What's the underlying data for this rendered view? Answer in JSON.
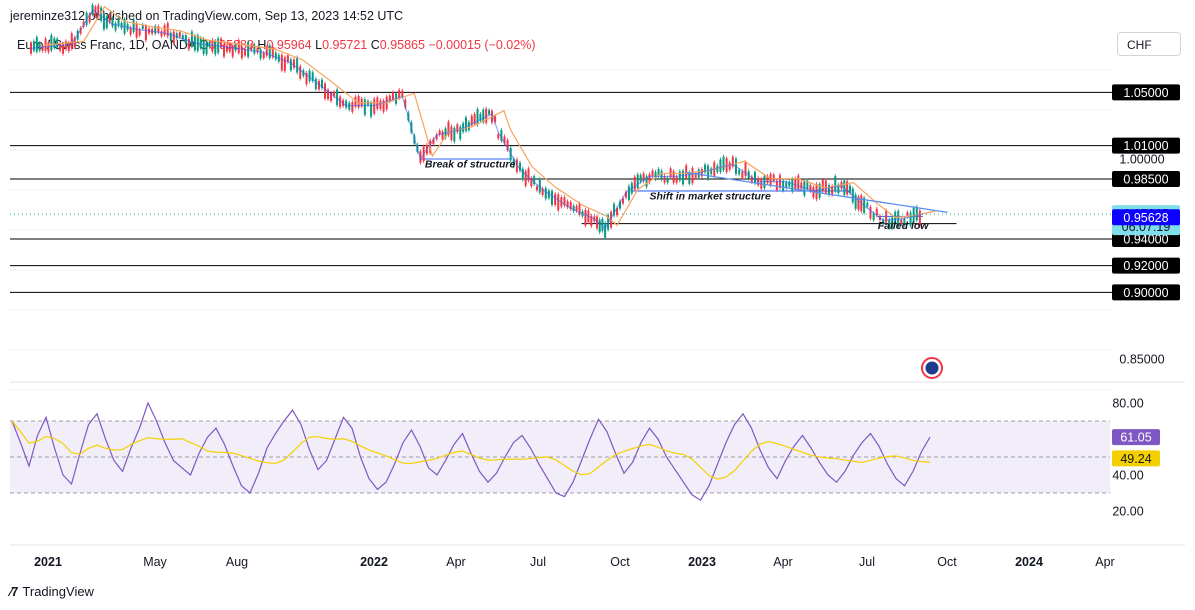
{
  "caption": "jereminze312 published on TradingView.com, Sep 13, 2023 14:52 UTC",
  "symbol": {
    "name": "Euro / Swiss Franc, 1D, OANDA",
    "open_label": "O",
    "open": "0.95880",
    "high_label": "H",
    "high": "0.95964",
    "low_label": "L",
    "low": "0.95721",
    "close_label": "C",
    "close": "0.95865",
    "change": "−0.00015 (−0.02%)"
  },
  "currency": "CHF",
  "brand": "TradingView",
  "colors": {
    "up": "#089981",
    "down": "#f23645",
    "ma_orange": "#f7a35c",
    "ma_blue": "#2962ff",
    "trend_line": "#5b8def",
    "rsi": "#7e57c2",
    "rsi_ma": "#f5d000",
    "rsi_band": "#ede7f6"
  },
  "chart_data": {
    "type": "line",
    "title": "Euro / Swiss Franc, 1D, OANDA",
    "xlabel": "",
    "ylabel": "",
    "x_axis": [
      "2021",
      "May",
      "Aug",
      "2022",
      "Apr",
      "Jul",
      "Oct",
      "2023",
      "Apr",
      "Jul",
      "Oct",
      "2024",
      "Apr"
    ],
    "y_ticks": [
      "0.85000",
      "1.00000"
    ],
    "series": [
      {
        "x": [
          "2021-01-01",
          "2021-02-15",
          "2021-03-10",
          "2021-04-01",
          "2021-05-01",
          "2021-06-01",
          "2021-07-01",
          "2021-08-15",
          "2021-09-15",
          "2021-10-15",
          "2021-11-15",
          "2021-12-15",
          "2022-01-15",
          "2022-02-15",
          "2022-03-07",
          "2022-03-25",
          "2022-04-20",
          "2022-05-25",
          "2022-06-01",
          "2022-06-25",
          "2022-07-20",
          "2022-08-20",
          "2022-09-15",
          "2022-09-27",
          "2022-10-20",
          "2022-11-15",
          "2022-12-15",
          "2023-01-05",
          "2023-02-15",
          "2023-03-15",
          "2023-04-15",
          "2023-05-15",
          "2023-06-15",
          "2023-07-10",
          "2023-07-31",
          "2023-08-20",
          "2023-09-13"
        ],
        "values": [
          1.083,
          1.086,
          1.112,
          1.101,
          1.097,
          1.094,
          1.087,
          1.083,
          1.08,
          1.072,
          1.056,
          1.04,
          1.04,
          1.047,
          1.0,
          1.018,
          1.022,
          1.034,
          1.02,
          0.992,
          0.977,
          0.963,
          0.955,
          0.948,
          0.975,
          0.987,
          0.987,
          0.989,
          0.996,
          0.983,
          0.983,
          0.976,
          0.98,
          0.965,
          0.954,
          0.955,
          0.95865
        ]
      }
    ],
    "horizontal_levels": [
      "1.05000",
      "1.01000",
      "0.98500",
      "0.94000",
      "0.92000",
      "0.90000"
    ],
    "price_marks": {
      "last_price": "0.95865",
      "countdown": "06:07:19",
      "blue_level": "0.95628"
    },
    "support_lines": [
      {
        "from": "2022-03-07",
        "to": "2022-06-15",
        "y": 1.0
      },
      {
        "from": "2022-10-25",
        "to": "2023-06-25",
        "y": 0.976
      },
      {
        "from": "2022-09-01",
        "to": "2023-10-20",
        "y": 0.9515
      },
      {
        "from": "2023-07-25",
        "to": "2023-09-13",
        "y": 0.957
      }
    ],
    "trend_line": {
      "from": [
        "2022-12-25",
        0.99
      ],
      "to": [
        "2023-10-10",
        0.96
      ]
    },
    "annotations": [
      "Break of structure",
      "Shift in market structure",
      "Failed low"
    ],
    "rsi": {
      "ticks": [
        "80.00",
        "40.00",
        "20.00"
      ],
      "band": [
        70,
        30
      ],
      "mid": 50,
      "last_value": "61.05",
      "ma_value": "49.24",
      "values": [
        70,
        58,
        45,
        62,
        72,
        55,
        40,
        35,
        52,
        68,
        74,
        60,
        48,
        42,
        55,
        66,
        80,
        70,
        58,
        48,
        44,
        40,
        52,
        61,
        66,
        57,
        45,
        34,
        30,
        41,
        55,
        63,
        70,
        76,
        68,
        54,
        43,
        48,
        60,
        72,
        66,
        50,
        38,
        32,
        36,
        46,
        58,
        65,
        56,
        44,
        40,
        48,
        57,
        63,
        52,
        42,
        36,
        41,
        50,
        58,
        62,
        55,
        46,
        38,
        30,
        28,
        36,
        48,
        60,
        71,
        64,
        52,
        41,
        47,
        58,
        66,
        60,
        50,
        43,
        36,
        29,
        26,
        34,
        46,
        58,
        68,
        74,
        66,
        54,
        44,
        38,
        48,
        56,
        62,
        55,
        47,
        40,
        36,
        42,
        51,
        58,
        63,
        56,
        46,
        38,
        34,
        42,
        53,
        61
      ]
    }
  }
}
